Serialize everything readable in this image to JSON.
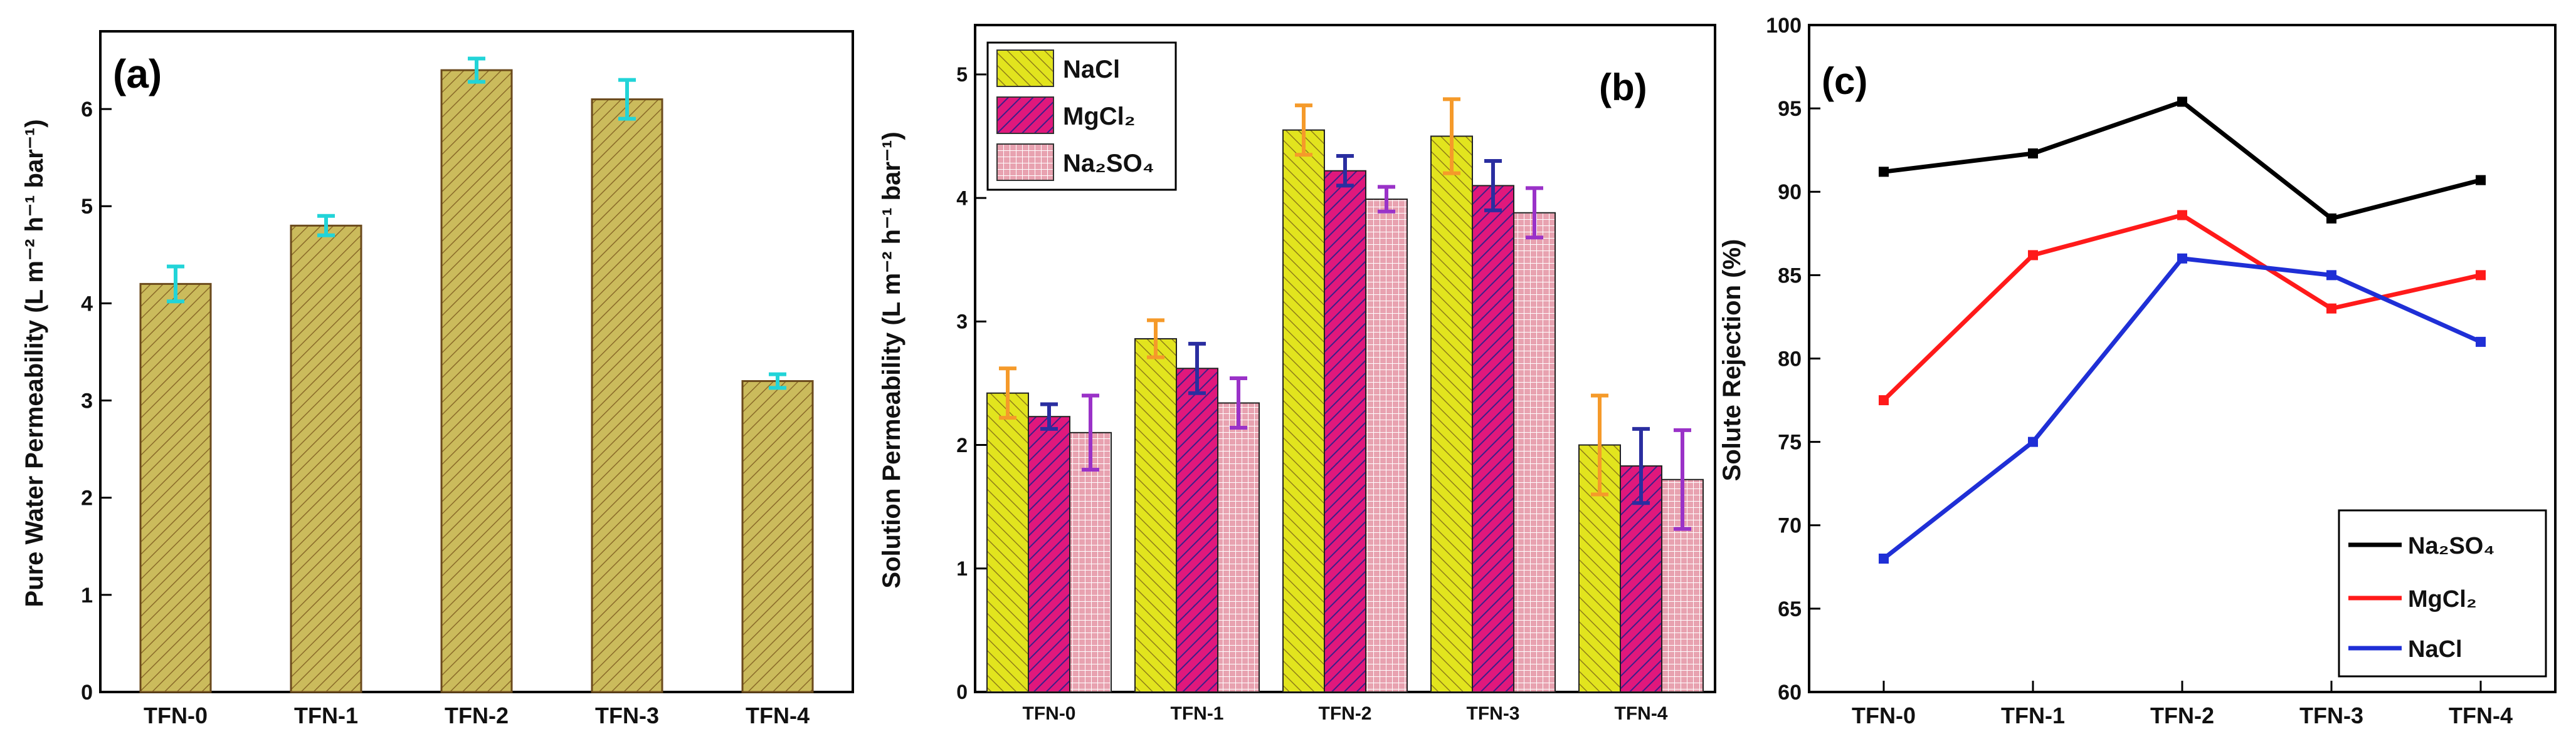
{
  "chart_data": [
    {
      "type": "bar",
      "panel_label": "(a)",
      "categories": [
        "TFN-0",
        "TFN-1",
        "TFN-2",
        "TFN-3",
        "TFN-4"
      ],
      "values": [
        4.2,
        4.8,
        6.4,
        6.1,
        3.2
      ],
      "errors": [
        0.18,
        0.1,
        0.12,
        0.2,
        0.07
      ],
      "ylabel": "Pure Water Permeability (L m⁻² h⁻¹ bar⁻¹)",
      "ylim": [
        0,
        6.8
      ],
      "yticks": [
        "0",
        "1",
        "2",
        "3",
        "4",
        "5",
        "6"
      ],
      "colors": {
        "bar": "#c9b95a",
        "error": "#22d4d8"
      }
    },
    {
      "type": "bar",
      "panel_label": "(b)",
      "categories": [
        "TFN-0",
        "TFN-1",
        "TFN-2",
        "TFN-3",
        "TFN-4"
      ],
      "series": [
        {
          "name": "NaCl",
          "values": [
            2.42,
            2.86,
            4.55,
            4.5,
            2.0
          ],
          "errors": [
            0.2,
            0.15,
            0.2,
            0.3,
            0.4
          ],
          "color": "#d9de1f",
          "error_color": "#f59a2a"
        },
        {
          "name": "MgCl₂",
          "values": [
            2.23,
            2.62,
            4.22,
            4.1,
            1.83
          ],
          "errors": [
            0.1,
            0.2,
            0.12,
            0.2,
            0.3
          ],
          "color": "#d6157a",
          "error_color": "#2a2ea0"
        },
        {
          "name": "Na₂SO₄",
          "values": [
            2.1,
            2.34,
            3.99,
            3.88,
            1.72
          ],
          "errors": [
            0.3,
            0.2,
            0.1,
            0.2,
            0.4
          ],
          "color": "#e39aa6",
          "error_color": "#9a32c8"
        }
      ],
      "ylabel": "Solution Permeability (L m⁻² h⁻¹ bar⁻¹)",
      "ylim": [
        0,
        5.4
      ],
      "yticks": [
        "0",
        "1",
        "2",
        "3",
        "4",
        "5"
      ],
      "legend_position": "top-left"
    },
    {
      "type": "line",
      "panel_label": "(c)",
      "categories": [
        "TFN-0",
        "TFN-1",
        "TFN-2",
        "TFN-3",
        "TFN-4"
      ],
      "series": [
        {
          "name": "Na₂SO₄",
          "values": [
            91.2,
            92.3,
            95.4,
            88.4,
            90.7
          ],
          "color": "#000000"
        },
        {
          "name": "MgCl₂",
          "values": [
            77.5,
            86.2,
            88.6,
            83.0,
            85.0
          ],
          "color": "#ff1a1a"
        },
        {
          "name": "NaCl",
          "values": [
            68.0,
            75.0,
            86.0,
            85.0,
            81.0
          ],
          "color": "#1f2fd6"
        }
      ],
      "ylabel": "Solute Rejection (%)",
      "ylim": [
        60,
        100
      ],
      "yticks": [
        "60",
        "65",
        "70",
        "75",
        "80",
        "85",
        "90",
        "95",
        "100"
      ],
      "legend_position": "bottom-right"
    }
  ]
}
